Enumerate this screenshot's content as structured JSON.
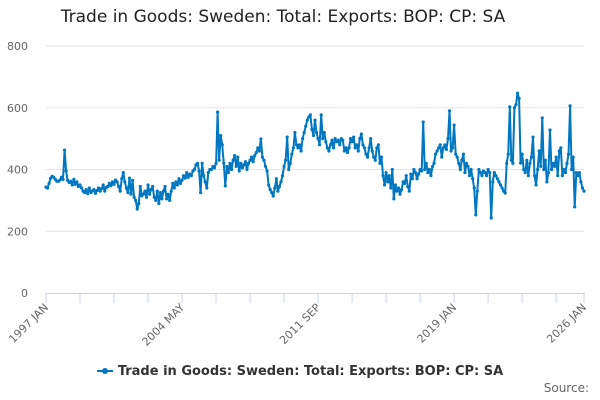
{
  "chart_data": {
    "type": "line",
    "title": "Trade in Goods: Sweden: Total: Exports: BOP: CP: SA",
    "xlabel": "",
    "ylabel": "",
    "ylim": [
      0,
      800
    ],
    "yticks": [
      "0",
      "200",
      "400",
      "600",
      "800"
    ],
    "ytick_values": [
      0,
      200,
      400,
      600,
      800
    ],
    "x_start": "1997 JAN",
    "x_end": "2026 JAN",
    "x_frequency": "monthly",
    "xtick_labels": [
      "1997 JAN",
      "2004 MAY",
      "2011 SEP",
      "2019 JAN",
      "2026 JAN"
    ],
    "xtick_months": [
      0,
      88,
      176,
      264,
      348
    ],
    "grid": true,
    "legend_position": "bottom",
    "series": [
      {
        "name": "Trade in Goods: Sweden: Total: Exports: BOP: CP: SA",
        "color": "#0077c0",
        "values": [
          343,
          340,
          355,
          372,
          378,
          375,
          368,
          362,
          362,
          366,
          375,
          368,
          463,
          395,
          365,
          358,
          362,
          350,
          368,
          352,
          360,
          345,
          350,
          340,
          330,
          325,
          335,
          322,
          340,
          326,
          330,
          335,
          323,
          332,
          340,
          330,
          338,
          350,
          330,
          342,
          345,
          355,
          348,
          360,
          352,
          366,
          360,
          345,
          330,
          370,
          390,
          360,
          340,
          325,
          372,
          320,
          365,
          310,
          300,
          272,
          290,
          345,
          315,
          320,
          330,
          310,
          350,
          320,
          335,
          345,
          310,
          300,
          330,
          290,
          325,
          305,
          330,
          345,
          305,
          320,
          300,
          330,
          355,
          340,
          360,
          350,
          370,
          355,
          365,
          380,
          372,
          390,
          375,
          385,
          380,
          395,
          400,
          415,
          420,
          395,
          325,
          420,
          380,
          360,
          340,
          390,
          400,
          400,
          410,
          405,
          420,
          586,
          430,
          510,
          480,
          420,
          347,
          410,
          390,
          420,
          400,
          430,
          445,
          410,
          440,
          395,
          420,
          405,
          415,
          425,
          400,
          420,
          430,
          440,
          425,
          445,
          455,
          470,
          460,
          499,
          440,
          430,
          410,
          395,
          350,
          335,
          325,
          314,
          340,
          370,
          330,
          345,
          360,
          380,
          410,
          430,
          505,
          400,
          420,
          450,
          470,
          520,
          480,
          470,
          480,
          460,
          500,
          520,
          540,
          560,
          570,
          577,
          530,
          510,
          560,
          520,
          500,
          480,
          577,
          500,
          520,
          490,
          470,
          460,
          480,
          495,
          470,
          500,
          490,
          495,
          480,
          500,
          495,
          460,
          470,
          455,
          470,
          500,
          490,
          505,
          470,
          480,
          460,
          500,
          515,
          480,
          470,
          450,
          440,
          470,
          500,
          460,
          440,
          430,
          470,
          480,
          420,
          440,
          380,
          350,
          390,
          360,
          380,
          340,
          400,
          305,
          350,
          330,
          340,
          320,
          335,
          360,
          355,
          380,
          345,
          330,
          385,
          370,
          400,
          390,
          370,
          385,
          400,
          395,
          554,
          400,
          420,
          390,
          400,
          380,
          410,
          420,
          450,
          460,
          470,
          480,
          440,
          470,
          480,
          465,
          500,
          590,
          460,
          470,
          544,
          450,
          440,
          420,
          400,
          430,
          450,
          390,
          420,
          410,
          380,
          400,
          370,
          340,
          253,
          330,
          400,
          390,
          380,
          395,
          390,
          380,
          400,
          390,
          243,
          360,
          390,
          380,
          370,
          360,
          350,
          340,
          330,
          324,
          420,
          450,
          603,
          430,
          420,
          600,
          610,
          647,
          630,
          421,
          450,
          400,
          390,
          430,
          380,
          420,
          440,
          505,
          380,
          350,
          400,
          460,
          410,
          567,
          400,
          430,
          360,
          390,
          528,
          400,
          420,
          410,
          440,
          380,
          460,
          470,
          380,
          400,
          390,
          420,
          450,
          606,
          400,
          440,
          279,
          390,
          380,
          390,
          360,
          340,
          330
        ]
      }
    ],
    "source_label": "Source:"
  }
}
